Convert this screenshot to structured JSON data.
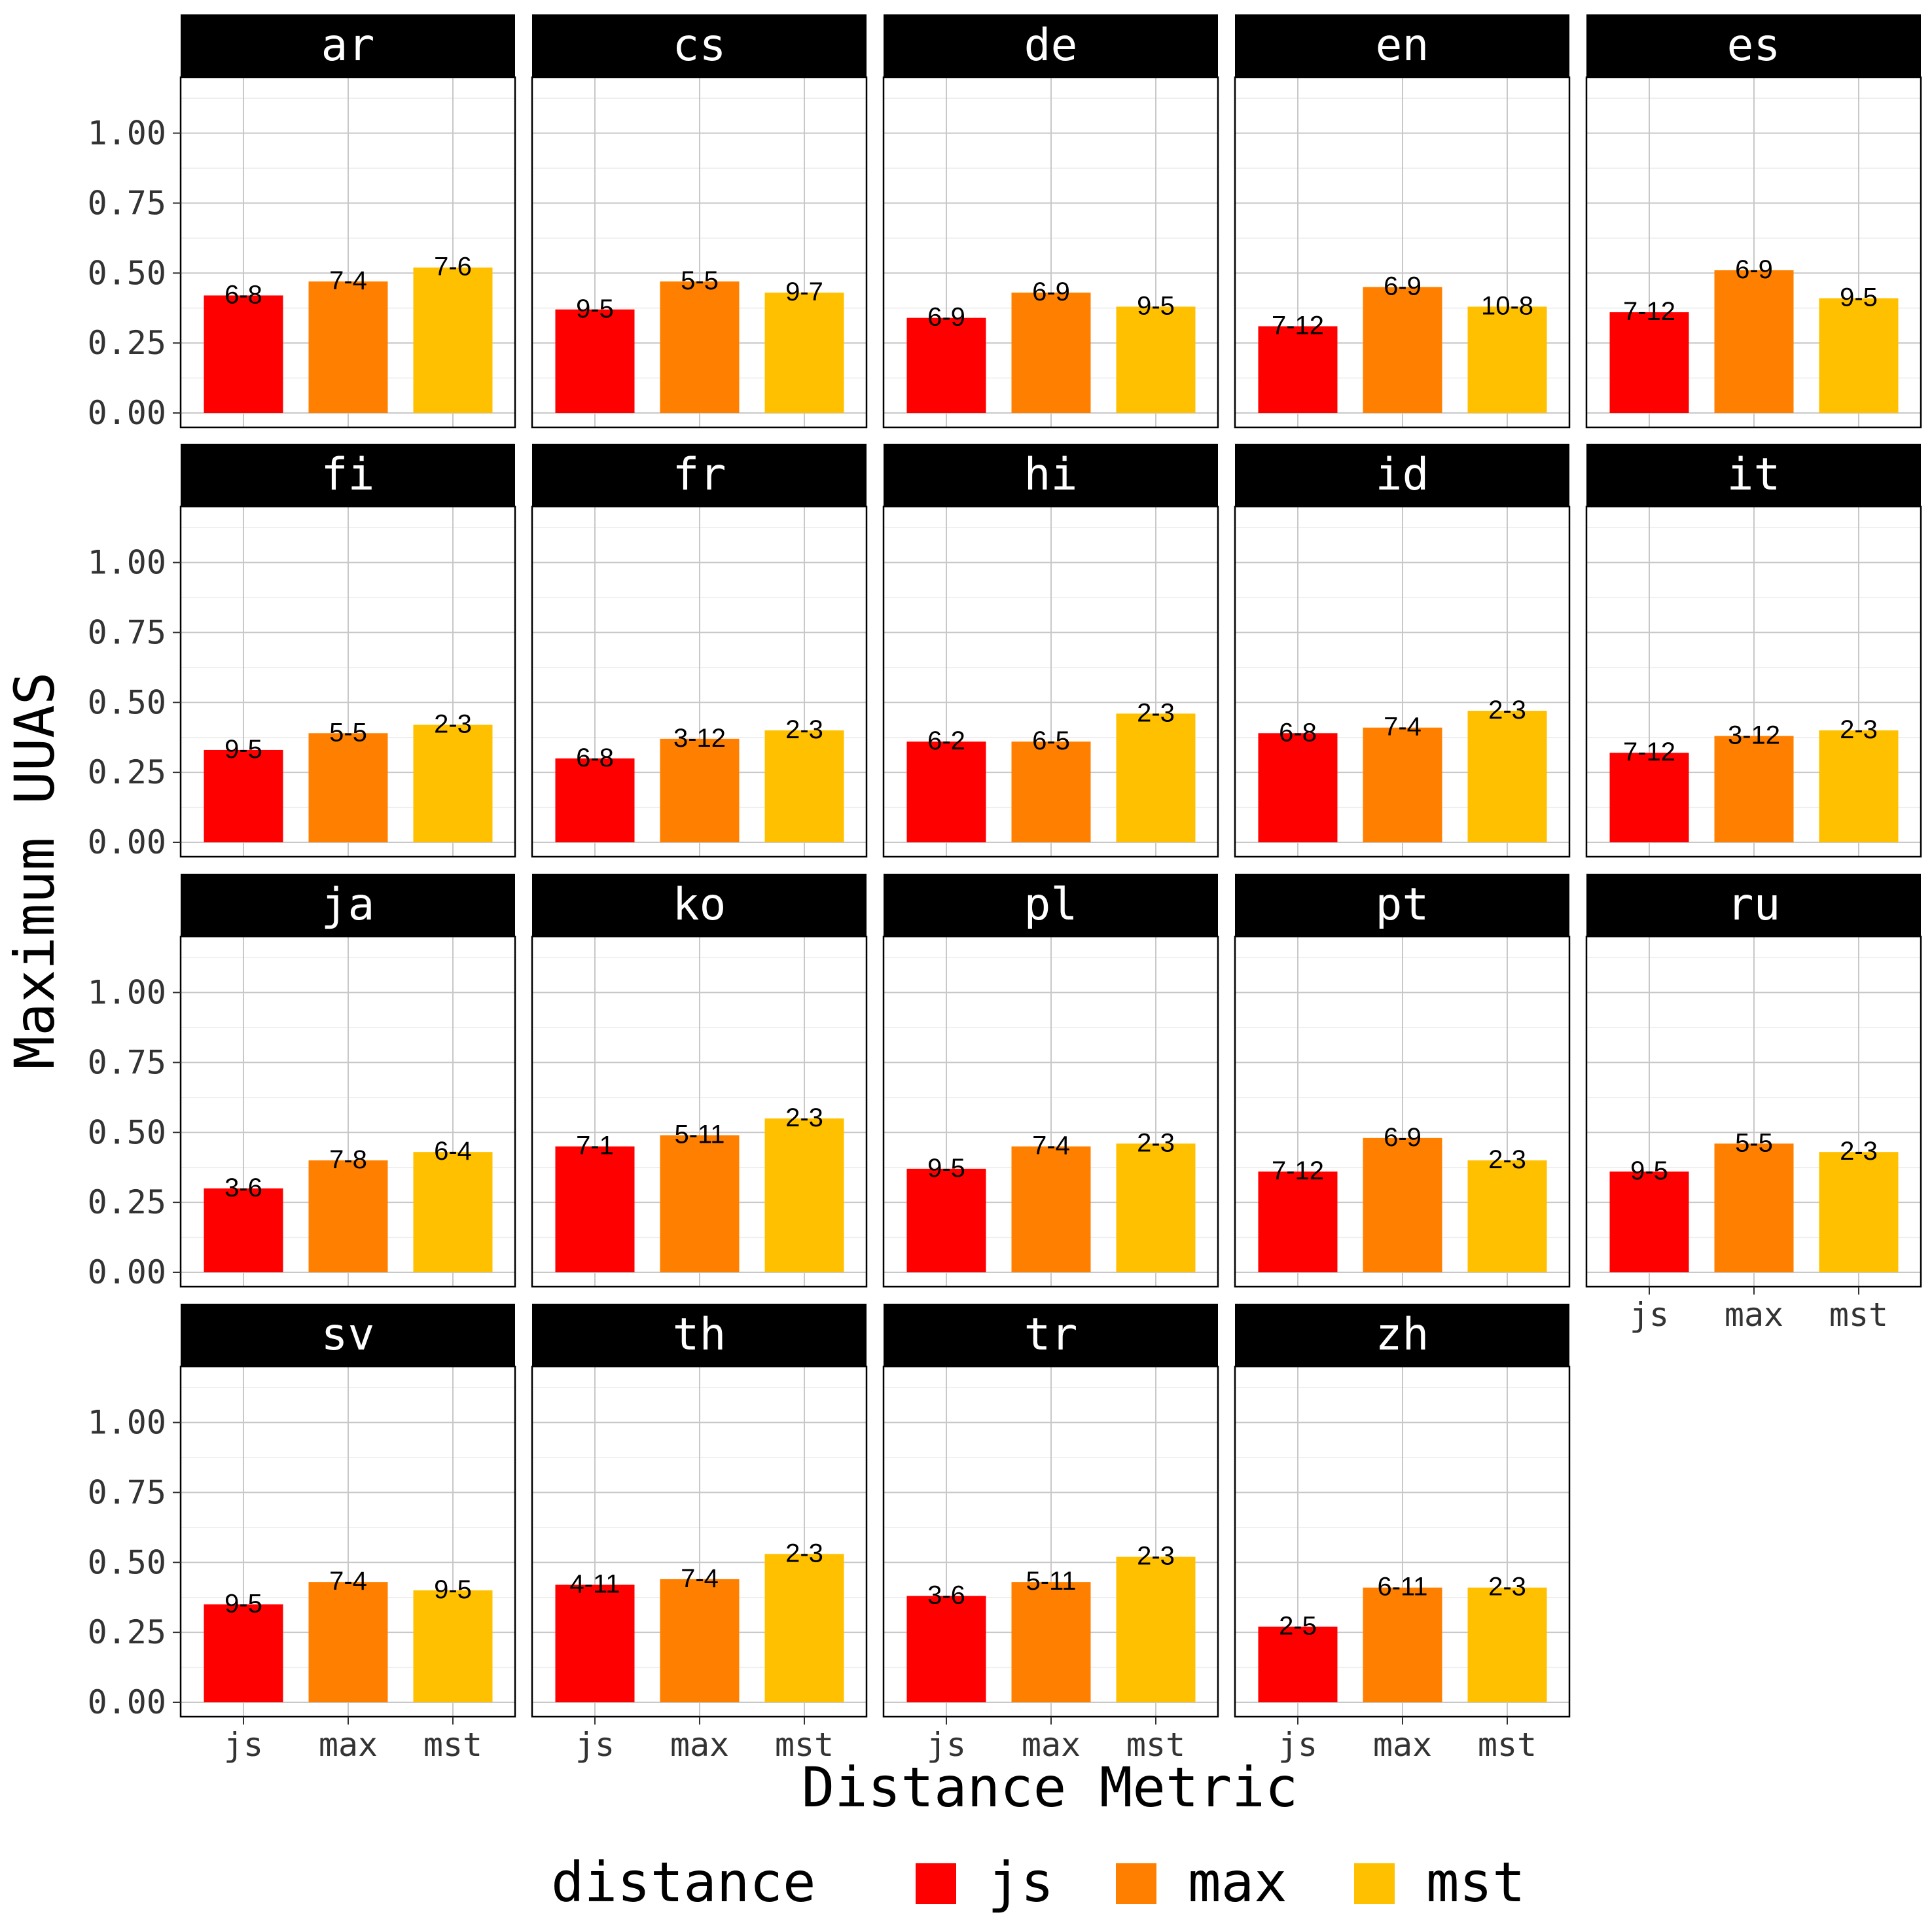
{
  "chart_data": {
    "type": "bar",
    "facet_by": "language",
    "xlabel": "Distance Metric",
    "ylabel": "Maximum UUAS",
    "ylim": [
      0,
      1.2
    ],
    "y_ticks": [
      "0.00",
      "0.25",
      "0.50",
      "0.75",
      "1.00"
    ],
    "y_tick_values": [
      0,
      0.25,
      0.5,
      0.75,
      1.0
    ],
    "categories": [
      "js",
      "max",
      "mst"
    ],
    "colors": {
      "js": "#FF0000",
      "max": "#FF8000",
      "mst": "#FFC000"
    },
    "grid": true,
    "legend": {
      "title": "distance",
      "position": "bottom",
      "entries": [
        "js",
        "max",
        "mst"
      ]
    },
    "panels": [
      {
        "name": "ar",
        "values": [
          0.42,
          0.47,
          0.52
        ],
        "labels": [
          "6-8",
          "7-4",
          "7-6"
        ]
      },
      {
        "name": "cs",
        "values": [
          0.37,
          0.47,
          0.43
        ],
        "labels": [
          "9-5",
          "5-5",
          "9-7"
        ]
      },
      {
        "name": "de",
        "values": [
          0.34,
          0.43,
          0.38
        ],
        "labels": [
          "6-9",
          "6-9",
          "9-5"
        ]
      },
      {
        "name": "en",
        "values": [
          0.31,
          0.45,
          0.38
        ],
        "labels": [
          "7-12",
          "6-9",
          "10-8"
        ]
      },
      {
        "name": "es",
        "values": [
          0.36,
          0.51,
          0.41
        ],
        "labels": [
          "7-12",
          "6-9",
          "9-5"
        ]
      },
      {
        "name": "fi",
        "values": [
          0.33,
          0.39,
          0.42
        ],
        "labels": [
          "9-5",
          "5-5",
          "2-3"
        ]
      },
      {
        "name": "fr",
        "values": [
          0.3,
          0.37,
          0.4
        ],
        "labels": [
          "6-8",
          "3-12",
          "2-3"
        ]
      },
      {
        "name": "hi",
        "values": [
          0.36,
          0.36,
          0.46
        ],
        "labels": [
          "6-2",
          "6-5",
          "2-3"
        ]
      },
      {
        "name": "id",
        "values": [
          0.39,
          0.41,
          0.47
        ],
        "labels": [
          "6-8",
          "7-4",
          "2-3"
        ]
      },
      {
        "name": "it",
        "values": [
          0.32,
          0.38,
          0.4
        ],
        "labels": [
          "7-12",
          "3-12",
          "2-3"
        ]
      },
      {
        "name": "ja",
        "values": [
          0.3,
          0.4,
          0.43
        ],
        "labels": [
          "3-6",
          "7-8",
          "6-4"
        ]
      },
      {
        "name": "ko",
        "values": [
          0.45,
          0.49,
          0.55
        ],
        "labels": [
          "7-1",
          "5-11",
          "2-3"
        ]
      },
      {
        "name": "pl",
        "values": [
          0.37,
          0.45,
          0.46
        ],
        "labels": [
          "9-5",
          "7-4",
          "2-3"
        ]
      },
      {
        "name": "pt",
        "values": [
          0.36,
          0.48,
          0.4
        ],
        "labels": [
          "7-12",
          "6-9",
          "2-3"
        ]
      },
      {
        "name": "ru",
        "values": [
          0.36,
          0.46,
          0.43
        ],
        "labels": [
          "9-5",
          "5-5",
          "2-3"
        ]
      },
      {
        "name": "sv",
        "values": [
          0.35,
          0.43,
          0.4
        ],
        "labels": [
          "9-5",
          "7-4",
          "9-5"
        ]
      },
      {
        "name": "th",
        "values": [
          0.42,
          0.44,
          0.53
        ],
        "labels": [
          "4-11",
          "7-4",
          "2-3"
        ]
      },
      {
        "name": "tr",
        "values": [
          0.38,
          0.43,
          0.52
        ],
        "labels": [
          "3-6",
          "5-11",
          "2-3"
        ]
      },
      {
        "name": "zh",
        "values": [
          0.27,
          0.41,
          0.41
        ],
        "labels": [
          "2-5",
          "6-11",
          "2-3"
        ]
      }
    ]
  }
}
